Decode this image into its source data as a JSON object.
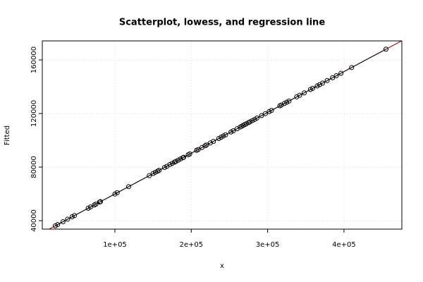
{
  "chart_data": {
    "type": "scatter",
    "title": "Scatterplot, lowess, and regression line",
    "x_label": "x",
    "y_label": "Fitted",
    "x": [
      22000,
      25000,
      32000,
      38000,
      44000,
      47000,
      65000,
      68000,
      73000,
      75000,
      80000,
      81000,
      100000,
      103000,
      118000,
      145000,
      150000,
      153000,
      156000,
      158000,
      165000,
      168000,
      172000,
      175000,
      178000,
      180000,
      183000,
      186000,
      189000,
      190000,
      196000,
      198000,
      207000,
      209000,
      214000,
      218000,
      220000,
      225000,
      229000,
      236000,
      239000,
      242000,
      245000,
      252000,
      255000,
      260000,
      264000,
      266000,
      268000,
      270000,
      272000,
      275000,
      277000,
      280000,
      283000,
      286000,
      292000,
      297000,
      302000,
      305000,
      316000,
      318000,
      322000,
      325000,
      328000,
      338000,
      342000,
      348000,
      356000,
      359000,
      365000,
      368000,
      372000,
      378000,
      385000,
      390000,
      396000,
      410000,
      455000
    ],
    "values": [
      36200,
      37100,
      39200,
      41100,
      42900,
      43800,
      49300,
      50200,
      51700,
      52300,
      53900,
      54200,
      59900,
      60900,
      65400,
      73600,
      75200,
      76100,
      77000,
      77600,
      79700,
      80600,
      81900,
      82800,
      83700,
      84300,
      85200,
      86100,
      87000,
      87300,
      89200,
      89800,
      92500,
      93100,
      94600,
      95900,
      96500,
      98000,
      99200,
      101300,
      102300,
      103200,
      104100,
      106200,
      107100,
      108600,
      109900,
      110500,
      111100,
      111700,
      112300,
      113200,
      113800,
      114700,
      115600,
      116600,
      118400,
      119900,
      121400,
      122300,
      125700,
      126300,
      127500,
      128400,
      129300,
      132400,
      133600,
      135400,
      137900,
      138800,
      140600,
      141500,
      142700,
      144600,
      146700,
      148200,
      150000,
      154300,
      168000
    ],
    "color": "#000000",
    "lowess_color": "#000000",
    "regression": {
      "intercept": 29500,
      "slope": 0.3044,
      "color": "#8b0000"
    },
    "xlim": [
      4900,
      475800
    ],
    "ylim": [
      33700,
      174200
    ],
    "xticks": [
      {
        "value": 100000,
        "label": "1e+05"
      },
      {
        "value": 200000,
        "label": "2e+05"
      },
      {
        "value": 300000,
        "label": "3e+05"
      },
      {
        "value": 400000,
        "label": "4e+05"
      }
    ],
    "yticks": [
      40000,
      80000,
      120000,
      160000
    ],
    "grid": true
  }
}
